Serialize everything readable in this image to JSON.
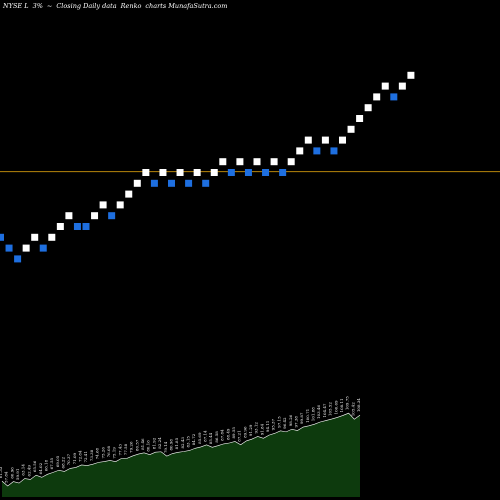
{
  "header": {
    "symbol": "NYSE L",
    "change": "3%",
    "arrow": "~",
    "title": "Closing Daily data",
    "chart_kind": "Renko",
    "site": "charts MunafaSutra.com"
  },
  "colors": {
    "background": "#000000",
    "up_brick": "#ffffff",
    "down_brick": "#1e6fe0",
    "reference_line": "#b8860b",
    "volume_fill": "#0d3a0d",
    "volume_line": "#ffffff",
    "labels": "#ffffff"
  },
  "chart_data": {
    "type": "renko",
    "bricks": [
      {
        "level": 14,
        "dir": "down"
      },
      {
        "level": 13,
        "dir": "down"
      },
      {
        "level": 12,
        "dir": "down"
      },
      {
        "level": 13,
        "dir": "up"
      },
      {
        "level": 14,
        "dir": "up"
      },
      {
        "level": 13,
        "dir": "down"
      },
      {
        "level": 14,
        "dir": "up"
      },
      {
        "level": 15,
        "dir": "up"
      },
      {
        "level": 16,
        "dir": "up"
      },
      {
        "level": 15,
        "dir": "down"
      },
      {
        "level": 15,
        "dir": "down"
      },
      {
        "level": 16,
        "dir": "up"
      },
      {
        "level": 17,
        "dir": "up"
      },
      {
        "level": 16,
        "dir": "down"
      },
      {
        "level": 17,
        "dir": "up"
      },
      {
        "level": 18,
        "dir": "up"
      },
      {
        "level": 19,
        "dir": "up"
      },
      {
        "level": 20,
        "dir": "up"
      },
      {
        "level": 19,
        "dir": "down"
      },
      {
        "level": 20,
        "dir": "up"
      },
      {
        "level": 19,
        "dir": "down"
      },
      {
        "level": 20,
        "dir": "up"
      },
      {
        "level": 19,
        "dir": "down"
      },
      {
        "level": 20,
        "dir": "up"
      },
      {
        "level": 19,
        "dir": "down"
      },
      {
        "level": 20,
        "dir": "up"
      },
      {
        "level": 21,
        "dir": "up"
      },
      {
        "level": 20,
        "dir": "down"
      },
      {
        "level": 21,
        "dir": "up"
      },
      {
        "level": 20,
        "dir": "down"
      },
      {
        "level": 21,
        "dir": "up"
      },
      {
        "level": 20,
        "dir": "down"
      },
      {
        "level": 21,
        "dir": "up"
      },
      {
        "level": 20,
        "dir": "down"
      },
      {
        "level": 21,
        "dir": "up"
      },
      {
        "level": 22,
        "dir": "up"
      },
      {
        "level": 23,
        "dir": "up"
      },
      {
        "level": 22,
        "dir": "down"
      },
      {
        "level": 23,
        "dir": "up"
      },
      {
        "level": 22,
        "dir": "down"
      },
      {
        "level": 23,
        "dir": "up"
      },
      {
        "level": 24,
        "dir": "up"
      },
      {
        "level": 25,
        "dir": "up"
      },
      {
        "level": 26,
        "dir": "up"
      },
      {
        "level": 27,
        "dir": "up"
      },
      {
        "level": 28,
        "dir": "up"
      },
      {
        "level": 27,
        "dir": "down"
      },
      {
        "level": 28,
        "dir": "up"
      },
      {
        "level": 29,
        "dir": "up"
      }
    ],
    "reference_level": 20.4,
    "level_range": [
      0,
      32
    ],
    "volume_labels": [
      "61.33",
      "57.84",
      "60.96",
      "59.91",
      "63.14",
      "62.49",
      "65.56",
      "64.02",
      "66.18",
      "67.55",
      "69.05",
      "68.22",
      "70.37",
      "71.09",
      "72.84",
      "72.41",
      "73.38",
      "74.68",
      "75.26",
      "76.08",
      "75.19",
      "77.43",
      "77.58",
      "79.26",
      "80.57",
      "81.46",
      "80.16",
      "81.92",
      "82.24",
      "79.14",
      "80.98",
      "81.85",
      "82.43",
      "83.15",
      "84.72",
      "85.69",
      "87.14",
      "85.44",
      "86.58",
      "87.84",
      "88.49",
      "89.55",
      "87.21",
      "89.96",
      "91.29",
      "93.12",
      "91.84",
      "94.11",
      "95.37",
      "97.15",
      "96.42",
      "98.26",
      "97.38",
      "99.87",
      "100.71",
      "101.88",
      "103.46",
      "104.47",
      "105.52",
      "106.69",
      "108.11",
      "109.75",
      "105.42",
      "108.34"
    ]
  }
}
